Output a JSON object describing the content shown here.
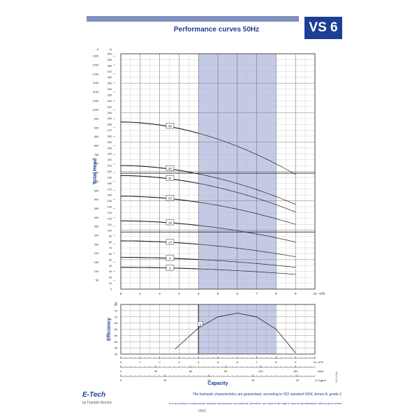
{
  "header": {
    "model": "VS 6",
    "title": "Performance curves 50Hz"
  },
  "chart_data": [
    {
      "type": "line",
      "title": "Performance curves 50Hz",
      "xlabel": "Capacity",
      "ylabel": "Total Head",
      "x_unit": "m³/h",
      "y_unit_left": "m",
      "y_unit_right": "ft",
      "xlim": [
        0,
        10
      ],
      "ylim": [
        0,
        400
      ],
      "x_ticks": [
        "0",
        "1",
        "2",
        "3",
        "4",
        "5",
        "6",
        "7",
        "8",
        "9",
        "10"
      ],
      "y_ticks_m": [
        "0",
        "10",
        "20",
        "30",
        "40",
        "50",
        "60",
        "70",
        "80",
        "90",
        "100",
        "110",
        "120",
        "130",
        "140",
        "150",
        "160",
        "170",
        "180",
        "190",
        "200",
        "210",
        "220",
        "230",
        "240",
        "250",
        "260",
        "270",
        "280",
        "290",
        "300",
        "310",
        "320",
        "330",
        "340",
        "350",
        "360",
        "370",
        "380",
        "390",
        "400"
      ],
      "y_ticks_ft": [
        "50",
        "100",
        "150",
        "200",
        "250",
        "300",
        "350",
        "400",
        "450",
        "500",
        "550",
        "600",
        "650",
        "700",
        "750",
        "800",
        "850",
        "900",
        "950",
        "1000",
        "1050",
        "1100",
        "1150",
        "1200",
        "1250",
        "1300"
      ],
      "recommended_range": [
        4,
        8
      ],
      "series": [
        {
          "name": "46",
          "shutoff": 284,
          "end": 195,
          "label_x": 2.3
        },
        {
          "name": "34",
          "shutoff": 210,
          "end": 144,
          "label_x": 2.3
        },
        {
          "name": "31",
          "shutoff": 193,
          "end": 131,
          "label_x": 2.3
        },
        {
          "name": "26",
          "shutoff": 158,
          "end": 110,
          "label_x": 2.3
        },
        {
          "name": "19",
          "shutoff": 116,
          "end": 80,
          "label_x": 2.3
        },
        {
          "name": "13",
          "shutoff": 82,
          "end": 55,
          "label_x": 2.3
        },
        {
          "name": "9",
          "shutoff": 54,
          "end": 37,
          "label_x": 2.3
        },
        {
          "name": "6",
          "shutoff": 37,
          "end": 25,
          "label_x": 2.3
        }
      ]
    },
    {
      "type": "line",
      "ylabel": "Efficiency",
      "y_unit": "%",
      "xlim": [
        0,
        10
      ],
      "ylim": [
        40,
        80
      ],
      "y_ticks": [
        "40",
        "45",
        "50",
        "55",
        "60",
        "65",
        "70",
        "75",
        "80"
      ],
      "x_ticks_m3h": [
        "0",
        "1",
        "2",
        "3",
        "4",
        "5",
        "6",
        "7",
        "8",
        "9",
        "10"
      ],
      "x_unit_m3h": "m³/h",
      "x_ticks_lmin": [
        "0",
        "30",
        "60",
        "90",
        "120",
        "150"
      ],
      "x_unit_lmin": "l/min",
      "x_ticks_usgpm": [
        "0",
        "10",
        "20",
        "30",
        "40"
      ],
      "x_unit_usgpm": "U.S.gpm",
      "xlabel": "Capacity",
      "recommended_range": [
        4,
        8
      ],
      "series": [
        {
          "name": "η",
          "x": [
            2.8,
            4,
            5,
            6,
            7,
            8,
            9
          ],
          "y": [
            44,
            61,
            70,
            73,
            70,
            60,
            41
          ]
        }
      ]
    }
  ],
  "footer": {
    "brand": "E-Tech",
    "company": "by Franklin Electric",
    "disclaimer": "The hydraulic characteristics are guaranteed, according to ISO standard 9906, Annex A, grade 2.",
    "policy": "It is our policy to continuously develop and improve our products, therefore, we reserve the right to amend specifications without prior notice.",
    "page": "III/62",
    "side_code": "VS6-50Hz"
  },
  "colors": {
    "brand": "#1c3f94",
    "band": "#c5cbe6",
    "rule": "#7f8fbf",
    "curve": "#222222"
  }
}
